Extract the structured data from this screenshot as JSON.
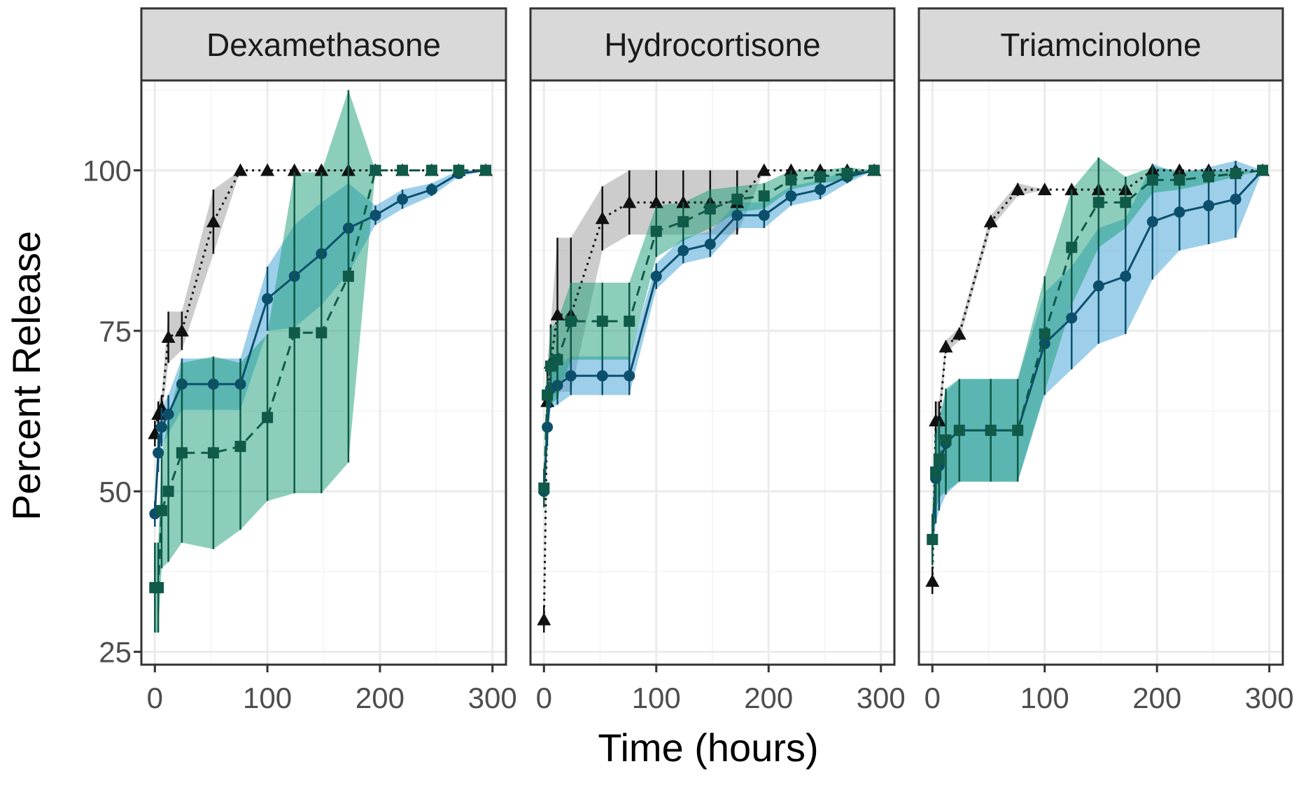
{
  "chart_data": {
    "type": "line",
    "xlabel": "Time (hours)",
    "ylabel": "Percent Release",
    "xlim": [
      -12,
      312
    ],
    "ylim": [
      23,
      114
    ],
    "x_ticks": [
      0,
      100,
      200,
      300
    ],
    "x_tick_labels": [
      "0",
      "100",
      "200",
      "300"
    ],
    "y_ticks": [
      25,
      50,
      75,
      100
    ],
    "y_tick_labels": [
      "25",
      "50",
      "75",
      "100"
    ],
    "grid": true,
    "legend": "none",
    "colors": {
      "teal": "#1a9e77",
      "blue": "#3b9fd6",
      "navy": "#0b4f6c",
      "gray": "#9a9a9a",
      "black": "#111111"
    },
    "panels": [
      {
        "title": "Dexamethasone",
        "series": [
          {
            "marker": "triangle",
            "color": "#111111",
            "band": "#9a9a9a",
            "dash": "3,6",
            "x": [
              0,
              3,
              6,
              12,
              24,
              52,
              76,
              100,
              124,
              148,
              172,
              196,
              220,
              246,
              270,
              294
            ],
            "y": [
              59,
              62,
              63,
              74,
              75,
              92,
              100,
              100,
              100,
              100,
              100,
              100,
              100,
              100,
              100,
              100
            ],
            "err": [
              2,
              2,
              2,
              4,
              3,
              5,
              0,
              0,
              0,
              0,
              0,
              0,
              0,
              0,
              0,
              0
            ]
          },
          {
            "marker": "circle",
            "color": "#0b4f6c",
            "band": "#3b9fd6",
            "dash": "",
            "x": [
              0,
              3,
              6,
              12,
              24,
              52,
              76,
              100,
              124,
              148,
              172,
              196,
              220,
              246,
              270,
              294
            ],
            "y": [
              46.5,
              56,
              60,
              62,
              66.7,
              66.7,
              66.7,
              80,
              83.5,
              87,
              91,
              93,
              95.5,
              97,
              99.5,
              100
            ],
            "err": [
              2,
              3,
              3,
              3,
              4,
              4,
              4,
              5,
              8,
              8,
              7,
              1.5,
              1.5,
              1,
              0.5,
              0
            ]
          },
          {
            "marker": "square",
            "color": "#0f5a48",
            "band": "#1a9e77",
            "dash": "14,9",
            "x": [
              0,
              3,
              6,
              12,
              24,
              52,
              76,
              100,
              124,
              148,
              172,
              196,
              220,
              246,
              270,
              294
            ],
            "y": [
              35,
              35,
              47,
              50,
              56,
              56,
              57,
              61.5,
              74.7,
              74.7,
              83.5,
              100,
              100,
              100,
              100,
              100
            ],
            "err": [
              7,
              7,
              9,
              11,
              14,
              15,
              13,
              13,
              25,
              25,
              29,
              0,
              0,
              0,
              0,
              0
            ]
          }
        ]
      },
      {
        "title": "Hydrocortisone",
        "series": [
          {
            "marker": "triangle",
            "color": "#111111",
            "band": "#9a9a9a",
            "dash": "3,6",
            "x": [
              0,
              3,
              6,
              12,
              24,
              52,
              76,
              100,
              124,
              148,
              172,
              196,
              220,
              246,
              270,
              294
            ],
            "y": [
              30,
              64,
              70,
              77.5,
              77.5,
              92.5,
              95,
              95,
              95,
              95,
              95,
              100,
              100,
              100,
              100,
              100
            ],
            "err": [
              2,
              6,
              6,
              12,
              12,
              5,
              5,
              5,
              5,
              5,
              5,
              0,
              0,
              0,
              0,
              0
            ]
          },
          {
            "marker": "circle",
            "color": "#0b4f6c",
            "band": "#3b9fd6",
            "dash": "",
            "x": [
              0,
              3,
              6,
              12,
              24,
              52,
              76,
              100,
              124,
              148,
              172,
              196,
              220,
              246,
              270,
              294
            ],
            "y": [
              50,
              60,
              66,
              66.5,
              68,
              68,
              68,
              83.5,
              87.5,
              88.5,
              93,
              93,
              96,
              97,
              99,
              100
            ],
            "err": [
              2,
              3,
              3,
              3,
              3,
              3,
              3,
              2,
              2,
              2,
              2,
              2,
              1.5,
              1.5,
              1,
              0
            ]
          },
          {
            "marker": "square",
            "color": "#0f5a48",
            "band": "#1a9e77",
            "dash": "14,9",
            "x": [
              0,
              3,
              6,
              12,
              24,
              52,
              76,
              100,
              124,
              148,
              172,
              196,
              220,
              246,
              270,
              294
            ],
            "y": [
              50.5,
              65,
              69.5,
              70.5,
              76.5,
              76.5,
              76.5,
              90.5,
              92,
              94,
              95.5,
              96,
              98.5,
              99,
              99.5,
              100
            ],
            "err": [
              3,
              3,
              6,
              6,
              6,
              6,
              6,
              4,
              3,
              3,
              2,
              2,
              1.5,
              1,
              1,
              0
            ]
          }
        ]
      },
      {
        "title": "Triamcinolone",
        "series": [
          {
            "marker": "triangle",
            "color": "#111111",
            "band": "#9a9a9a",
            "dash": "3,6",
            "x": [
              0,
              3,
              6,
              12,
              24,
              52,
              76,
              100,
              124,
              148,
              172,
              196,
              220,
              246,
              270,
              294
            ],
            "y": [
              36,
              61,
              61,
              72.5,
              74.5,
              92,
              97,
              97,
              97,
              97,
              97,
              100,
              100,
              100,
              100,
              100
            ],
            "err": [
              2,
              3,
              3,
              1,
              1,
              1,
              1,
              0,
              0,
              0,
              0,
              0,
              0,
              0,
              0,
              0
            ]
          },
          {
            "marker": "circle",
            "color": "#0b4f6c",
            "band": "#3b9fd6",
            "dash": "",
            "x": [
              0,
              3,
              6,
              12,
              24,
              52,
              76,
              100,
              124,
              148,
              172,
              196,
              220,
              246,
              270,
              294
            ],
            "y": [
              42.5,
              52,
              54,
              57.5,
              59.5,
              59.5,
              59.5,
              73,
              77,
              82,
              83.5,
              92,
              93.5,
              94.5,
              95.5,
              100
            ],
            "err": [
              3,
              7,
              7,
              8,
              8,
              8,
              8,
              8,
              8,
              9,
              9,
              9,
              6,
              6,
              6,
              0
            ]
          },
          {
            "marker": "square",
            "color": "#0f5a48",
            "band": "#1a9e77",
            "dash": "14,9",
            "x": [
              0,
              3,
              6,
              12,
              24,
              52,
              76,
              100,
              124,
              148,
              172,
              196,
              220,
              246,
              270,
              294
            ],
            "y": [
              42.5,
              53,
              55,
              58,
              59.5,
              59.5,
              59.5,
              74.5,
              88,
              95,
              95,
              98.5,
              98.5,
              99,
              99.5,
              100
            ],
            "err": [
              4,
              6,
              6,
              8,
              8,
              8,
              8,
              9,
              9,
              7,
              4,
              2,
              1.5,
              1,
              0.5,
              0
            ]
          }
        ]
      }
    ]
  }
}
